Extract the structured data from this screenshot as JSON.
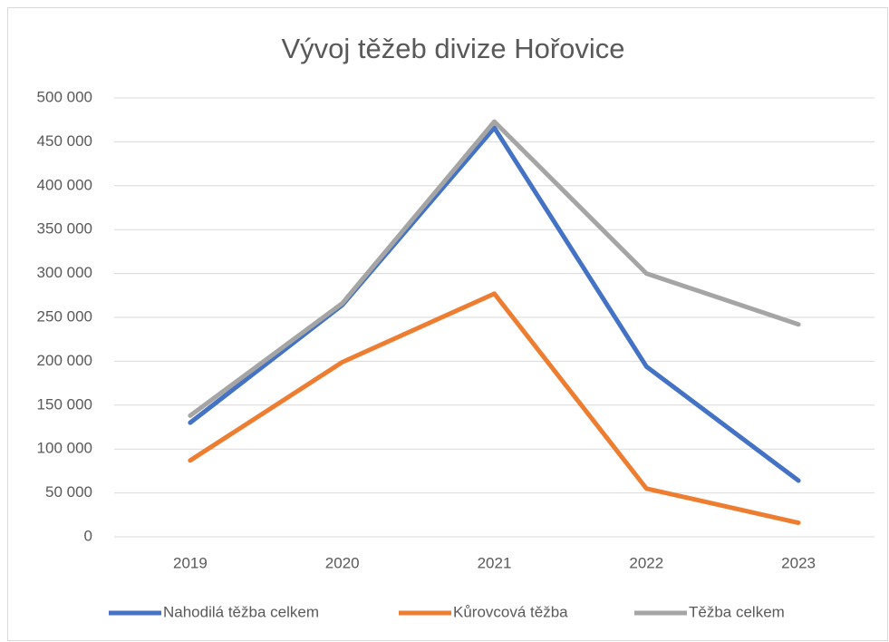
{
  "chart_data": {
    "type": "line",
    "title": "Vývoj těžeb divize Hořovice",
    "categories": [
      "2019",
      "2020",
      "2021",
      "2022",
      "2023"
    ],
    "series": [
      {
        "name": "Nahodilá těžba celkem",
        "color": "#4472c4",
        "values": [
          130000,
          264000,
          466000,
          194000,
          64000
        ]
      },
      {
        "name": "Kůrovcová těžba",
        "color": "#ed7d31",
        "values": [
          87000,
          199000,
          277000,
          55000,
          16000
        ]
      },
      {
        "name": "Těžba celkem",
        "color": "#a5a5a5",
        "values": [
          138000,
          266000,
          473000,
          300000,
          242000
        ]
      }
    ],
    "ylim": [
      0,
      500000
    ],
    "yticks": [
      0,
      {
        "value": 50000,
        "label": "50 000"
      },
      {
        "value": 100000,
        "label": "100 000"
      },
      {
        "value": 150000,
        "label": "150 000"
      },
      {
        "value": 200000,
        "label": "200 000"
      },
      {
        "value": 250000,
        "label": "250 000"
      },
      {
        "value": 300000,
        "label": "300 000"
      },
      {
        "value": 350000,
        "label": "350 000"
      },
      {
        "value": 400000,
        "label": "400 000"
      },
      {
        "value": 450000,
        "label": "450 000"
      },
      {
        "value": 500000,
        "label": "500 000"
      }
    ],
    "grid": true,
    "legend": "bottom"
  }
}
